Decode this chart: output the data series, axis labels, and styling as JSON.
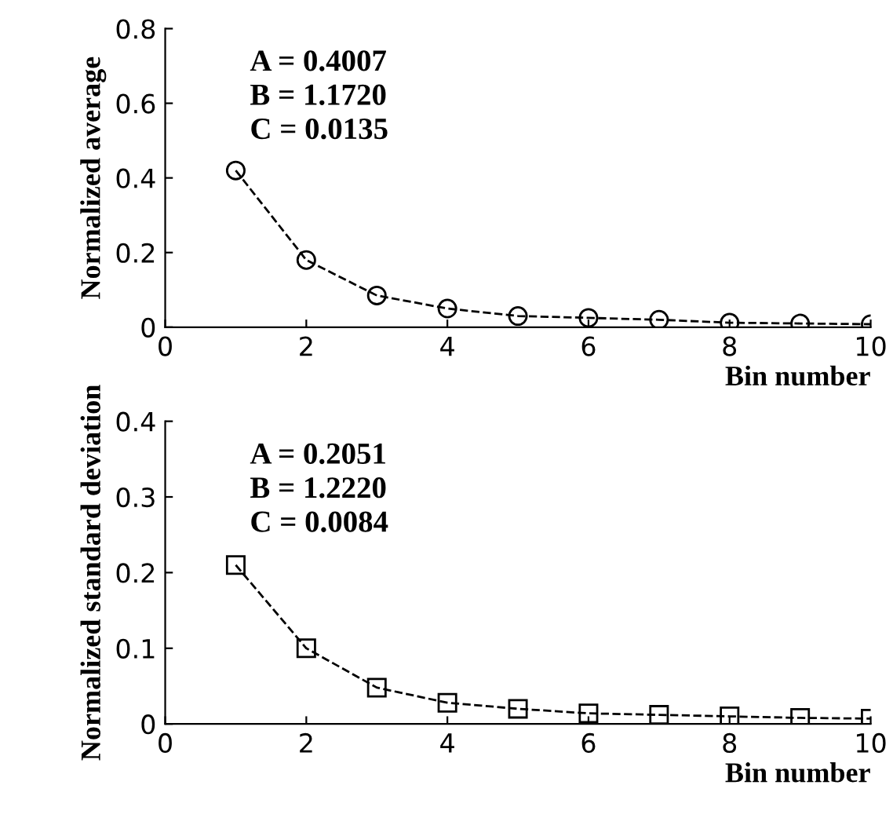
{
  "chart_data": [
    {
      "type": "line",
      "xlabel": "Bin number",
      "ylabel": "Normalized average",
      "annotations": [
        "A = 0.4007",
        "B = 1.1720",
        "C = 0.0135"
      ],
      "x": [
        1,
        2,
        3,
        4,
        5,
        6,
        7,
        8,
        9,
        10
      ],
      "series": [
        {
          "color": "#000000",
          "values": [
            0.42,
            0.18,
            0.085,
            0.05,
            0.03,
            0.025,
            0.02,
            0.012,
            0.01,
            0.008
          ]
        }
      ],
      "xlim": [
        0,
        10
      ],
      "xticks": [
        0,
        2,
        4,
        6,
        8,
        10
      ],
      "ylim": [
        0,
        0.8
      ],
      "yticks": [
        0,
        0.2,
        0.4,
        0.6,
        0.8
      ],
      "marker": "circle",
      "line_style": "dashed",
      "grid": false
    },
    {
      "type": "line",
      "xlabel": "Bin number",
      "ylabel": "Normalized standard deviation",
      "annotations": [
        "A = 0.2051",
        "B = 1.2220",
        "C = 0.0084"
      ],
      "x": [
        1,
        2,
        3,
        4,
        5,
        6,
        7,
        8,
        9,
        10
      ],
      "series": [
        {
          "color": "#000000",
          "values": [
            0.21,
            0.1,
            0.048,
            0.028,
            0.02,
            0.014,
            0.012,
            0.01,
            0.008,
            0.007
          ]
        }
      ],
      "xlim": [
        0,
        10
      ],
      "xticks": [
        0,
        2,
        4,
        6,
        8,
        10
      ],
      "ylim": [
        0,
        0.4
      ],
      "yticks": [
        0,
        0.1,
        0.2,
        0.3,
        0.4
      ],
      "marker": "square",
      "line_style": "dashed",
      "grid": false
    }
  ]
}
